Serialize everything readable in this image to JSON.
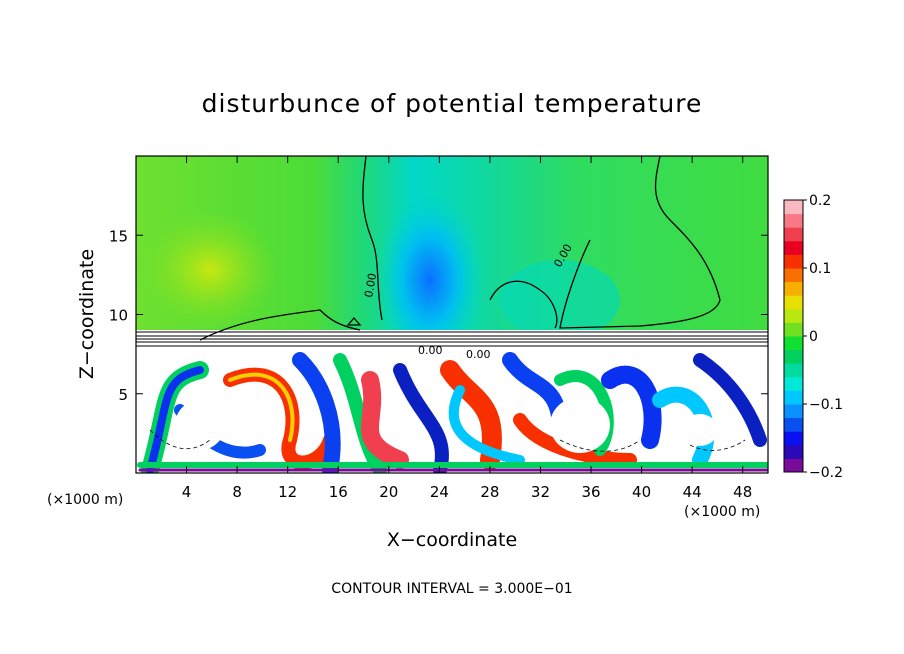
{
  "chart_data": {
    "type": "heatmap",
    "title": "disturbunce of potential temperature",
    "xlabel": "X−coordinate",
    "ylabel": "Z−coordinate",
    "x_unit_left": "(×1000 m)",
    "x_unit_right": "(×1000 m)",
    "xlim": [
      0,
      50
    ],
    "ylim": [
      0,
      20
    ],
    "x_ticks": [
      4,
      8,
      12,
      16,
      20,
      24,
      28,
      32,
      36,
      40,
      44,
      48
    ],
    "x_tick_labels": [
      "4",
      "8",
      "12",
      "16",
      "20",
      "24",
      "28",
      "32",
      "36",
      "40",
      "44",
      "48"
    ],
    "y_ticks": [
      5,
      10,
      15
    ],
    "y_tick_labels": [
      "5",
      "10",
      "15"
    ],
    "colorbar": {
      "range": [
        -0.2,
        0.2
      ],
      "ticks": [
        -0.2,
        -0.1,
        0,
        0.1,
        0.2
      ],
      "tick_labels": [
        "−0.2",
        "−0.1",
        "0",
        "0.1",
        "0.2"
      ],
      "colors": [
        "#7a0a9a",
        "#2a0ab4",
        "#0a10f0",
        "#0a50f0",
        "#0a90ff",
        "#00c8ff",
        "#00e8d8",
        "#00dca0",
        "#00d060",
        "#10e030",
        "#70e020",
        "#b8e810",
        "#e8e000",
        "#f8b000",
        "#f87000",
        "#f83000",
        "#e80020",
        "#f04050",
        "#f87888",
        "#fab8c0"
      ]
    },
    "contour_label": "0.00",
    "footer": "CONTOUR INTERVAL = 3.000E−01"
  }
}
